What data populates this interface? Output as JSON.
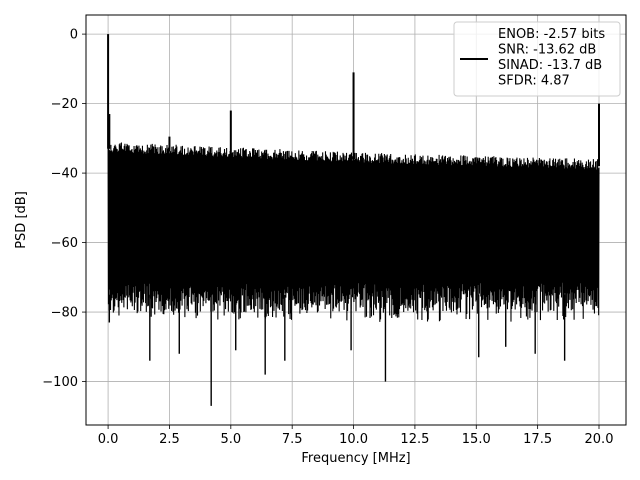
{
  "chart_data": {
    "type": "line",
    "title": "",
    "xlabel": "Frequency [MHz]",
    "ylabel": "PSD [dB]",
    "xlim": [
      -0.9,
      21.1
    ],
    "ylim": [
      -112.5,
      5.5
    ],
    "grid": true,
    "legend_position": "top-right",
    "x_ticks": [
      0.0,
      2.5,
      5.0,
      7.5,
      10.0,
      12.5,
      15.0,
      17.5,
      20.0
    ],
    "x_tick_labels": [
      "0.0",
      "2.5",
      "5.0",
      "7.5",
      "10.0",
      "12.5",
      "15.0",
      "17.5",
      "20.0"
    ],
    "y_ticks": [
      0,
      -20,
      -40,
      -60,
      -80,
      -100
    ],
    "y_tick_labels": [
      "0",
      "−20",
      "−40",
      "−60",
      "−80",
      "−100"
    ],
    "legend_lines": [
      "ENOB: -2.57 bits",
      "SNR: -13.62 dB",
      "SINAD: -13.7 dB",
      "SFDR: 4.87"
    ],
    "series": [
      {
        "color": "#000000",
        "x_range": [
          0,
          20
        ],
        "noise_ceiling": [
          [
            0.0,
            -31
          ],
          [
            5.0,
            -32.5
          ],
          [
            10.0,
            -34
          ],
          [
            15.0,
            -35
          ],
          [
            20.0,
            -36
          ]
        ],
        "noise_floor_typical": -75,
        "peaks": [
          {
            "x": 0.0,
            "y": 0
          },
          {
            "x": 0.05,
            "y": -23
          },
          {
            "x": 2.5,
            "y": -29.5
          },
          {
            "x": 5.0,
            "y": -22
          },
          {
            "x": 10.0,
            "y": -11
          },
          {
            "x": 12.5,
            "y": -35
          },
          {
            "x": 20.0,
            "y": -20
          }
        ],
        "dips": [
          {
            "x": 0.05,
            "y": -83
          },
          {
            "x": 1.7,
            "y": -94
          },
          {
            "x": 2.9,
            "y": -92
          },
          {
            "x": 4.2,
            "y": -107
          },
          {
            "x": 5.2,
            "y": -91
          },
          {
            "x": 6.4,
            "y": -98
          },
          {
            "x": 7.2,
            "y": -94
          },
          {
            "x": 9.9,
            "y": -91
          },
          {
            "x": 11.3,
            "y": -100
          },
          {
            "x": 15.1,
            "y": -93
          },
          {
            "x": 16.2,
            "y": -90
          },
          {
            "x": 17.4,
            "y": -92
          },
          {
            "x": 18.6,
            "y": -94
          }
        ]
      }
    ]
  }
}
